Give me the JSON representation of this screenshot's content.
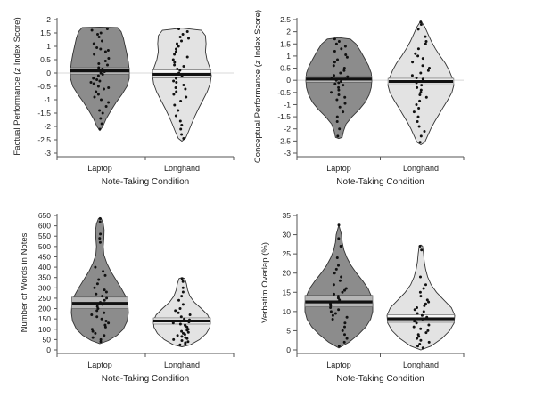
{
  "chart_data": [
    {
      "type": "violin",
      "ylabel": "Factual Performance (z Index Score)",
      "ylabel_parts": [
        "Factual Performance (",
        "z",
        " Index Score)"
      ],
      "xlabel": "Note-Taking Condition",
      "ylim": [
        -3,
        2
      ],
      "yticks": [
        -3,
        -2.5,
        -2,
        -1.5,
        -1,
        -0.5,
        0,
        0.5,
        1,
        1.5,
        2
      ],
      "ytick_labels": [
        "-3",
        "-2.5",
        "-2",
        "-1.5",
        "-1",
        "-0.5",
        "0",
        "0.5",
        "1",
        "1.5",
        "2"
      ],
      "categories": [
        "Laptop",
        "Longhand"
      ],
      "groups": [
        {
          "name": "Laptop",
          "fill": "#8c8c8c",
          "mean": 0.08,
          "ci": [
            -0.05,
            0.2
          ],
          "density": [
            [
              -2.15,
              0
            ],
            [
              -2.0,
              0.1
            ],
            [
              -1.7,
              0.22
            ],
            [
              -1.4,
              0.38
            ],
            [
              -1.1,
              0.55
            ],
            [
              -0.8,
              0.75
            ],
            [
              -0.5,
              0.92
            ],
            [
              -0.2,
              1
            ],
            [
              0.1,
              1
            ],
            [
              0.4,
              0.97
            ],
            [
              0.7,
              0.92
            ],
            [
              1.0,
              0.86
            ],
            [
              1.3,
              0.8
            ],
            [
              1.55,
              0.72
            ],
            [
              1.7,
              0.6
            ],
            [
              1.72,
              0
            ]
          ],
          "points": [
            1.65,
            1.6,
            1.5,
            1.45,
            1.35,
            1.2,
            1.1,
            0.95,
            0.9,
            0.85,
            0.8,
            0.7,
            0.55,
            0.45,
            0.35,
            0.3,
            0.2,
            0.15,
            0.1,
            0.05,
            0.0,
            -0.05,
            -0.1,
            -0.2,
            -0.25,
            -0.3,
            -0.35,
            -0.4,
            -0.5,
            -0.55,
            -0.6,
            -0.7,
            -0.8,
            -0.9,
            -1.0,
            -1.1,
            -1.25,
            -1.4,
            -1.5,
            -1.7,
            -1.9,
            -2.1
          ]
        },
        {
          "name": "Longhand",
          "fill": "#e3e3e3",
          "mean": -0.05,
          "ci": [
            -0.18,
            0.12
          ],
          "density": [
            [
              -2.55,
              0
            ],
            [
              -2.45,
              0.12
            ],
            [
              -2.2,
              0.22
            ],
            [
              -1.9,
              0.33
            ],
            [
              -1.6,
              0.45
            ],
            [
              -1.3,
              0.58
            ],
            [
              -1.0,
              0.72
            ],
            [
              -0.7,
              0.86
            ],
            [
              -0.4,
              0.96
            ],
            [
              -0.1,
              1
            ],
            [
              0.2,
              0.95
            ],
            [
              0.5,
              0.85
            ],
            [
              0.8,
              0.8
            ],
            [
              1.1,
              0.82
            ],
            [
              1.4,
              0.8
            ],
            [
              1.6,
              0.66
            ],
            [
              1.68,
              0
            ]
          ],
          "points": [
            1.65,
            1.55,
            1.45,
            1.35,
            1.3,
            1.2,
            1.1,
            1.0,
            0.9,
            0.8,
            0.7,
            0.6,
            0.5,
            0.4,
            0.3,
            0.25,
            0.15,
            0.1,
            0.0,
            -0.05,
            -0.1,
            -0.2,
            -0.3,
            -0.35,
            -0.45,
            -0.55,
            -0.6,
            -0.7,
            -0.8,
            -0.9,
            -1.05,
            -1.2,
            -1.4,
            -1.6,
            -1.8,
            -1.95,
            -2.1,
            -2.3,
            -2.45
          ]
        }
      ]
    },
    {
      "type": "violin",
      "ylabel": "Conceptual Performance (z Index Score)",
      "ylabel_parts": [
        "Conceptual Performance (",
        "z",
        " Index Score)"
      ],
      "xlabel": "Note-Taking Condition",
      "ylim": [
        -3,
        2.5
      ],
      "yticks": [
        -3,
        -2.5,
        -2,
        -1.5,
        -1,
        -0.5,
        0,
        0.5,
        1,
        1.5,
        2,
        2.5
      ],
      "ytick_labels": [
        "-3",
        "-2.5",
        "-2",
        "-1.5",
        "-1",
        "-0.5",
        "0",
        "0.5",
        "1",
        "1.5",
        "2",
        "2.5"
      ],
      "categories": [
        "Laptop",
        "Longhand"
      ],
      "groups": [
        {
          "name": "Laptop",
          "fill": "#8c8c8c",
          "mean": 0.05,
          "ci": [
            -0.08,
            0.18
          ],
          "density": [
            [
              -2.4,
              0
            ],
            [
              -2.35,
              0.1
            ],
            [
              -2.1,
              0.14
            ],
            [
              -1.8,
              0.22
            ],
            [
              -1.5,
              0.4
            ],
            [
              -1.2,
              0.62
            ],
            [
              -0.9,
              0.8
            ],
            [
              -0.6,
              0.92
            ],
            [
              -0.3,
              0.98
            ],
            [
              0.0,
              1
            ],
            [
              0.3,
              0.98
            ],
            [
              0.6,
              0.9
            ],
            [
              0.9,
              0.78
            ],
            [
              1.2,
              0.66
            ],
            [
              1.5,
              0.52
            ],
            [
              1.7,
              0.35
            ],
            [
              1.76,
              0
            ]
          ],
          "points": [
            1.7,
            1.6,
            1.5,
            1.4,
            1.3,
            1.2,
            1.05,
            0.95,
            0.85,
            0.75,
            0.6,
            0.5,
            0.4,
            0.3,
            0.2,
            0.15,
            0.1,
            0.05,
            0.0,
            -0.05,
            -0.1,
            -0.15,
            -0.2,
            -0.3,
            -0.4,
            -0.5,
            -0.6,
            -0.7,
            -0.8,
            -0.95,
            -1.1,
            -1.3,
            -1.5,
            -1.7,
            -2.0,
            -2.3
          ]
        },
        {
          "name": "Longhand",
          "fill": "#e3e3e3",
          "mean": -0.05,
          "ci": [
            -0.18,
            0.08
          ],
          "density": [
            [
              -2.65,
              0
            ],
            [
              -2.55,
              0.12
            ],
            [
              -2.3,
              0.2
            ],
            [
              -2.0,
              0.3
            ],
            [
              -1.7,
              0.42
            ],
            [
              -1.4,
              0.55
            ],
            [
              -1.1,
              0.68
            ],
            [
              -0.8,
              0.82
            ],
            [
              -0.5,
              0.94
            ],
            [
              -0.2,
              1
            ],
            [
              0.1,
              0.95
            ],
            [
              0.4,
              0.86
            ],
            [
              0.7,
              0.74
            ],
            [
              1.0,
              0.58
            ],
            [
              1.3,
              0.44
            ],
            [
              1.6,
              0.32
            ],
            [
              1.9,
              0.22
            ],
            [
              2.2,
              0.12
            ],
            [
              2.45,
              0
            ]
          ],
          "points": [
            2.4,
            2.3,
            2.1,
            1.8,
            1.6,
            1.5,
            1.3,
            1.1,
            1.0,
            0.9,
            0.75,
            0.6,
            0.5,
            0.4,
            0.3,
            0.2,
            0.1,
            0.05,
            0.0,
            -0.05,
            -0.1,
            -0.2,
            -0.3,
            -0.4,
            -0.5,
            -0.6,
            -0.7,
            -0.85,
            -1.0,
            -1.15,
            -1.3,
            -1.5,
            -1.7,
            -1.9,
            -2.1,
            -2.3,
            -2.55
          ]
        }
      ]
    },
    {
      "type": "violin",
      "ylabel": "Number of Words in Notes",
      "xlabel": "Note-Taking Condition",
      "ylim": [
        0,
        650
      ],
      "yticks": [
        0,
        50,
        100,
        150,
        200,
        250,
        300,
        350,
        400,
        450,
        500,
        550,
        600,
        650
      ],
      "ytick_labels": [
        "0",
        "50",
        "100",
        "150",
        "200",
        "250",
        "300",
        "350",
        "400",
        "450",
        "500",
        "550",
        "600",
        "650"
      ],
      "categories": [
        "Laptop",
        "Longhand"
      ],
      "groups": [
        {
          "name": "Laptop",
          "fill": "#8c8c8c",
          "mean": 225,
          "ci": [
            200,
            255
          ],
          "density": [
            [
              30,
              0
            ],
            [
              45,
              0.3
            ],
            [
              70,
              0.6
            ],
            [
              100,
              0.82
            ],
            [
              140,
              0.96
            ],
            [
              180,
              1
            ],
            [
              220,
              0.98
            ],
            [
              260,
              0.9
            ],
            [
              300,
              0.74
            ],
            [
              340,
              0.56
            ],
            [
              380,
              0.38
            ],
            [
              420,
              0.24
            ],
            [
              460,
              0.14
            ],
            [
              500,
              0.12
            ],
            [
              540,
              0.14
            ],
            [
              580,
              0.15
            ],
            [
              610,
              0.12
            ],
            [
              635,
              0.05
            ],
            [
              640,
              0
            ]
          ],
          "points": [
            635,
            620,
            560,
            540,
            520,
            400,
            380,
            360,
            340,
            320,
            300,
            290,
            280,
            270,
            260,
            250,
            240,
            230,
            220,
            210,
            200,
            190,
            180,
            170,
            160,
            150,
            140,
            130,
            120,
            110,
            100,
            90,
            80,
            70,
            60,
            50,
            40
          ]
        },
        {
          "name": "Longhand",
          "fill": "#e3e3e3",
          "mean": 140,
          "ci": [
            125,
            155
          ],
          "density": [
            [
              15,
              0
            ],
            [
              25,
              0.3
            ],
            [
              50,
              0.62
            ],
            [
              80,
              0.86
            ],
            [
              110,
              0.98
            ],
            [
              140,
              1
            ],
            [
              170,
              0.9
            ],
            [
              200,
              0.68
            ],
            [
              230,
              0.44
            ],
            [
              260,
              0.28
            ],
            [
              290,
              0.2
            ],
            [
              320,
              0.16
            ],
            [
              345,
              0.1
            ],
            [
              350,
              0
            ]
          ],
          "points": [
            345,
            330,
            300,
            280,
            260,
            240,
            220,
            200,
            190,
            180,
            170,
            160,
            150,
            145,
            140,
            135,
            130,
            125,
            120,
            115,
            110,
            100,
            95,
            90,
            85,
            80,
            75,
            70,
            65,
            60,
            55,
            50,
            45,
            40,
            35,
            30,
            25
          ]
        }
      ]
    },
    {
      "type": "violin",
      "ylabel": "Verbatim Overlap (%)",
      "xlabel": "Note-Taking Condition",
      "ylim": [
        0,
        35
      ],
      "yticks": [
        0,
        5,
        10,
        15,
        20,
        25,
        30,
        35
      ],
      "ytick_labels": [
        "0",
        "5",
        "10",
        "15",
        "20",
        "25",
        "30",
        "35"
      ],
      "categories": [
        "Laptop",
        "Longhand"
      ],
      "groups": [
        {
          "name": "Laptop",
          "fill": "#8c8c8c",
          "mean": 12.5,
          "ci": [
            11.2,
            14.2
          ],
          "density": [
            [
              0.5,
              0
            ],
            [
              2,
              0.3
            ],
            [
              4,
              0.58
            ],
            [
              6,
              0.8
            ],
            [
              8,
              0.94
            ],
            [
              10,
              1
            ],
            [
              12,
              1
            ],
            [
              14,
              0.96
            ],
            [
              16,
              0.86
            ],
            [
              18,
              0.7
            ],
            [
              20,
              0.52
            ],
            [
              22,
              0.36
            ],
            [
              24,
              0.24
            ],
            [
              26,
              0.15
            ],
            [
              28,
              0.1
            ],
            [
              30,
              0.08
            ],
            [
              32.5,
              0
            ]
          ],
          "points": [
            32.5,
            29,
            27,
            24,
            22,
            21,
            20,
            19,
            18,
            17,
            16,
            15.5,
            15,
            14.5,
            14,
            13.5,
            13,
            12.5,
            12,
            11.5,
            11,
            10.5,
            10,
            9.5,
            9,
            8.5,
            8,
            7,
            6,
            5,
            4,
            3,
            2,
            1
          ]
        },
        {
          "name": "Longhand",
          "fill": "#e3e3e3",
          "mean": 8.1,
          "ci": [
            7.2,
            9.2
          ],
          "density": [
            [
              0,
              0
            ],
            [
              1,
              0.3
            ],
            [
              3,
              0.62
            ],
            [
              5,
              0.85
            ],
            [
              7,
              0.98
            ],
            [
              9,
              1
            ],
            [
              11,
              0.9
            ],
            [
              13,
              0.68
            ],
            [
              15,
              0.46
            ],
            [
              17,
              0.3
            ],
            [
              19,
              0.2
            ],
            [
              21,
              0.14
            ],
            [
              23,
              0.1
            ],
            [
              25,
              0.08
            ],
            [
              27,
              0.05
            ],
            [
              27.3,
              0
            ]
          ],
          "points": [
            27,
            26,
            19,
            17,
            16,
            15,
            14,
            13,
            12.5,
            12,
            11.5,
            11,
            10.5,
            10,
            9.5,
            9,
            8.5,
            8,
            7.5,
            7,
            6.5,
            6,
            5.5,
            5,
            4.5,
            4,
            3.5,
            3,
            2.5,
            2,
            1.5,
            1,
            0.5
          ]
        }
      ]
    }
  ]
}
